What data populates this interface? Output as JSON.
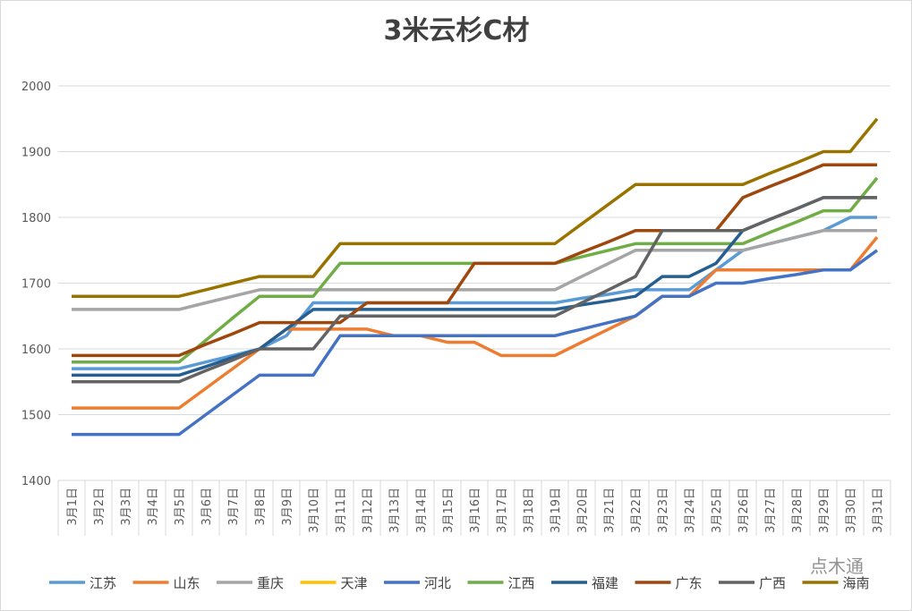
{
  "chart_data": {
    "type": "line",
    "title": "3米云杉C材",
    "watermark": "点木通",
    "categories": [
      "3月1日",
      "3月2日",
      "3月3日",
      "3月4日",
      "3月5日",
      "3月6日",
      "3月7日",
      "3月8日",
      "3月9日",
      "3月10日",
      "3月11日",
      "3月12日",
      "3月13日",
      "3月14日",
      "3月15日",
      "3月16日",
      "3月17日",
      "3月18日",
      "3月19日",
      "3月20日",
      "3月21日",
      "3月22日",
      "3月23日",
      "3月24日",
      "3月25日",
      "3月26日",
      "3月27日",
      "3月28日",
      "3月29日",
      "3月30日",
      "3月31日"
    ],
    "ylim": [
      1400,
      2000
    ],
    "yticks": [
      1400,
      1500,
      1600,
      1700,
      1800,
      1900,
      2000
    ],
    "grid": true,
    "legend": "bottom",
    "series": [
      {
        "name": "江苏",
        "color": "#5b9bd5",
        "values": [
          1570,
          1570,
          1570,
          1570,
          1570,
          1580,
          1590,
          1600,
          1620,
          1670,
          1670,
          1670,
          1670,
          1670,
          1670,
          1670,
          1670,
          1670,
          1670,
          1677,
          1683,
          1690,
          1690,
          1690,
          1720,
          1750,
          1760,
          1770,
          1780,
          1800,
          1800
        ]
      },
      {
        "name": "山东",
        "color": "#ed7d31",
        "values": [
          1510,
          1510,
          1510,
          1510,
          1510,
          1540,
          1570,
          1600,
          1630,
          1630,
          1630,
          1630,
          1620,
          1620,
          1610,
          1610,
          1590,
          1590,
          1590,
          1610,
          1630,
          1650,
          1680,
          1680,
          1720,
          1720,
          1720,
          1720,
          1720,
          1720,
          1770
        ]
      },
      {
        "name": "重庆",
        "color": "#a5a5a5",
        "values": [
          1660,
          1660,
          1660,
          1660,
          1660,
          1670,
          1680,
          1690,
          1690,
          1690,
          1690,
          1690,
          1690,
          1690,
          1690,
          1690,
          1690,
          1690,
          1690,
          1710,
          1730,
          1750,
          1750,
          1750,
          1750,
          1750,
          1760,
          1770,
          1780,
          1780,
          1780
        ]
      },
      {
        "name": "天津",
        "color": "#ffc000",
        "values": [
          null,
          null,
          null,
          null,
          null,
          null,
          null,
          null,
          null,
          null,
          null,
          null,
          null,
          null,
          null,
          null,
          null,
          null,
          null,
          null,
          null,
          null,
          null,
          null,
          null,
          null,
          null,
          null,
          null,
          null,
          null
        ]
      },
      {
        "name": "河北",
        "color": "#4472c4",
        "values": [
          1470,
          1470,
          1470,
          1470,
          1470,
          1500,
          1530,
          1560,
          1560,
          1560,
          1620,
          1620,
          1620,
          1620,
          1620,
          1620,
          1620,
          1620,
          1620,
          1630,
          1640,
          1650,
          1680,
          1680,
          1700,
          1700,
          1707,
          1713,
          1720,
          1720,
          1750
        ]
      },
      {
        "name": "江西",
        "color": "#70ad47",
        "values": [
          1580,
          1580,
          1580,
          1580,
          1580,
          1613,
          1647,
          1680,
          1680,
          1680,
          1730,
          1730,
          1730,
          1730,
          1730,
          1730,
          1730,
          1730,
          1730,
          1740,
          1750,
          1760,
          1760,
          1760,
          1760,
          1760,
          1777,
          1793,
          1810,
          1810,
          1860
        ]
      },
      {
        "name": "福建",
        "color": "#255e91",
        "values": [
          1560,
          1560,
          1560,
          1560,
          1560,
          1573,
          1587,
          1600,
          1630,
          1660,
          1660,
          1660,
          1660,
          1660,
          1660,
          1660,
          1660,
          1660,
          1660,
          1667,
          1673,
          1680,
          1710,
          1710,
          1730,
          1780,
          1797,
          1813,
          1830,
          1830,
          1830
        ]
      },
      {
        "name": "广东",
        "color": "#9e480e",
        "values": [
          1590,
          1590,
          1590,
          1590,
          1590,
          1607,
          1623,
          1640,
          1640,
          1640,
          1640,
          1670,
          1670,
          1670,
          1670,
          1730,
          1730,
          1730,
          1730,
          1747,
          1763,
          1780,
          1780,
          1780,
          1780,
          1830,
          1847,
          1863,
          1880,
          1880,
          1880
        ]
      },
      {
        "name": "广西",
        "color": "#636363",
        "values": [
          1550,
          1550,
          1550,
          1550,
          1550,
          1567,
          1583,
          1600,
          1600,
          1600,
          1650,
          1650,
          1650,
          1650,
          1650,
          1650,
          1650,
          1650,
          1650,
          1670,
          1690,
          1710,
          1780,
          1780,
          1780,
          1780,
          1797,
          1813,
          1830,
          1830,
          1830
        ]
      },
      {
        "name": "海南",
        "color": "#997300",
        "values": [
          1680,
          1680,
          1680,
          1680,
          1680,
          1690,
          1700,
          1710,
          1710,
          1710,
          1760,
          1760,
          1760,
          1760,
          1760,
          1760,
          1760,
          1760,
          1760,
          1790,
          1820,
          1850,
          1850,
          1850,
          1850,
          1850,
          1867,
          1883,
          1900,
          1900,
          1950
        ]
      }
    ]
  }
}
